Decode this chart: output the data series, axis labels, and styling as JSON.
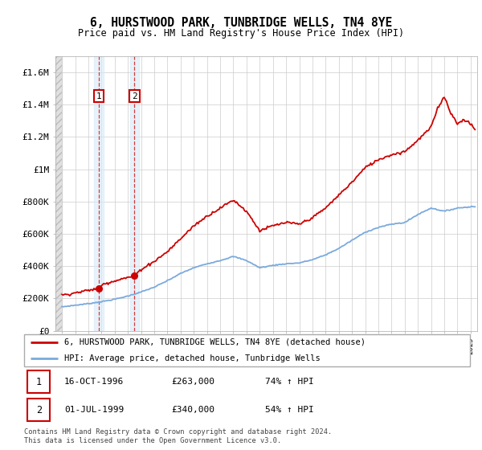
{
  "title": "6, HURSTWOOD PARK, TUNBRIDGE WELLS, TN4 8YE",
  "subtitle": "Price paid vs. HM Land Registry's House Price Index (HPI)",
  "ylabel_ticks": [
    "£0",
    "£200K",
    "£400K",
    "£600K",
    "£800K",
    "£1M",
    "£1.2M",
    "£1.4M",
    "£1.6M"
  ],
  "ylabel_values": [
    0,
    200000,
    400000,
    600000,
    800000,
    1000000,
    1200000,
    1400000,
    1600000
  ],
  "ylim": [
    0,
    1700000
  ],
  "xmin": 1993.5,
  "xmax": 2025.5,
  "purchases": [
    {
      "date": 1996.79,
      "price": 263000,
      "label": "1"
    },
    {
      "date": 1999.5,
      "price": 340000,
      "label": "2"
    }
  ],
  "purchase_info": [
    {
      "label": "1",
      "date_str": "16-OCT-1996",
      "price_str": "£263,000",
      "hpi_str": "74% ↑ HPI"
    },
    {
      "label": "2",
      "date_str": "01-JUL-1999",
      "price_str": "£340,000",
      "hpi_str": "54% ↑ HPI"
    }
  ],
  "legend_line1": "6, HURSTWOOD PARK, TUNBRIDGE WELLS, TN4 8YE (detached house)",
  "legend_line2": "HPI: Average price, detached house, Tunbridge Wells",
  "footer": "Contains HM Land Registry data © Crown copyright and database right 2024.\nThis data is licensed under the Open Government Licence v3.0.",
  "line_color": "#cc0000",
  "hpi_color": "#7aaadd",
  "grid_color": "#cccccc",
  "hpi_key_years": [
    1994,
    1995,
    1996,
    1997,
    1998,
    1999,
    2000,
    2001,
    2002,
    2003,
    2004,
    2005,
    2006,
    2007,
    2008,
    2009,
    2010,
    2011,
    2012,
    2013,
    2014,
    2015,
    2016,
    2017,
    2018,
    2019,
    2020,
    2021,
    2022,
    2023,
    2024,
    2025.3
  ],
  "hpi_key_vals": [
    148000,
    158000,
    168000,
    180000,
    195000,
    215000,
    240000,
    270000,
    310000,
    355000,
    390000,
    415000,
    435000,
    460000,
    435000,
    390000,
    405000,
    415000,
    420000,
    440000,
    470000,
    510000,
    560000,
    610000,
    640000,
    660000,
    670000,
    720000,
    760000,
    740000,
    760000,
    770000
  ],
  "red_key_years": [
    1994,
    1995,
    1996,
    1996.79,
    1997,
    1998,
    1999,
    1999.5,
    2000,
    2001,
    2002,
    2003,
    2004,
    2005,
    2006,
    2007,
    2008,
    2009,
    2010,
    2011,
    2012,
    2013,
    2014,
    2015,
    2016,
    2017,
    2018,
    2019,
    2020,
    2021,
    2022,
    2022.5,
    2023,
    2023.5,
    2024,
    2024.5,
    2025,
    2025.3
  ],
  "red_key_vals": [
    220000,
    235000,
    250000,
    263000,
    285000,
    310000,
    330000,
    340000,
    380000,
    430000,
    490000,
    570000,
    650000,
    710000,
    760000,
    810000,
    740000,
    620000,
    650000,
    670000,
    660000,
    700000,
    760000,
    840000,
    920000,
    1010000,
    1060000,
    1090000,
    1110000,
    1180000,
    1260000,
    1380000,
    1450000,
    1350000,
    1280000,
    1310000,
    1280000,
    1250000
  ]
}
